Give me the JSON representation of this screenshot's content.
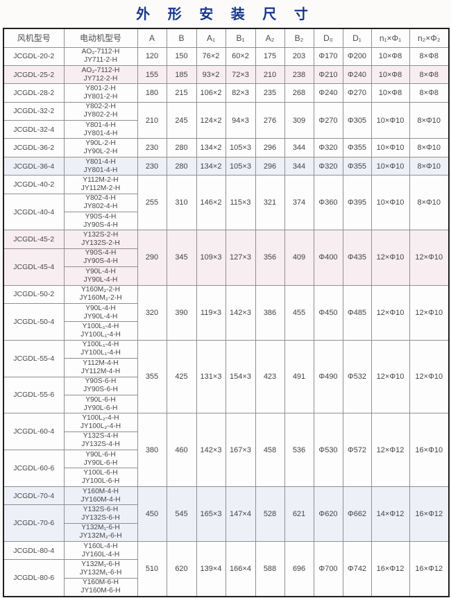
{
  "page": {
    "title": "外 形 安 装 尺 寸",
    "title_color": "#17368c"
  },
  "table": {
    "headers": [
      "风机型号",
      "电动机型号",
      "A",
      "B",
      "A₁",
      "B₁",
      "A₂",
      "B₂",
      "D₀",
      "D₁",
      "n₁×Φ₁",
      "n₂×Φ₂"
    ],
    "groups": [
      {
        "tint": "white",
        "fans": [
          {
            "model": "JCGDL-20-2",
            "motors": [
              [
                "AO₂-7112-H",
                "JY711-2-H"
              ]
            ]
          }
        ],
        "dims": [
          "120",
          "150",
          "76×2",
          "60×2",
          "175",
          "203",
          "Φ170",
          "Φ200",
          "10×Φ8",
          "8×Φ8"
        ]
      },
      {
        "tint": "pink",
        "fans": [
          {
            "model": "JCGDL-25-2",
            "motors": [
              [
                "AO₂-7112-H",
                "JY712-2-H"
              ]
            ]
          }
        ],
        "dims": [
          "155",
          "185",
          "93×2",
          "72×3",
          "210",
          "238",
          "Φ210",
          "Φ240",
          "10×Φ8",
          "8×Φ8"
        ]
      },
      {
        "tint": "white",
        "fans": [
          {
            "model": "JCGDL-28-2",
            "motors": [
              [
                "Y801-2-H",
                "JY801-2-H"
              ]
            ]
          }
        ],
        "dims": [
          "180",
          "215",
          "106×2",
          "82×3",
          "235",
          "268",
          "Φ240",
          "Φ270",
          "10×Φ8",
          "8×Φ8"
        ]
      },
      {
        "tint": "white",
        "fans": [
          {
            "model": "JCGDL-32-2",
            "motors": [
              [
                "Y802-2-H",
                "JY802-2-H"
              ]
            ]
          },
          {
            "model": "JCGDL-32-4",
            "motors": [
              [
                "Y801-4-H",
                "JY801-4-H"
              ]
            ]
          }
        ],
        "dims": [
          "210",
          "245",
          "124×2",
          "94×3",
          "276",
          "309",
          "Φ270",
          "Φ305",
          "10×Φ10",
          "8×Φ10"
        ]
      },
      {
        "tint": "white",
        "fans": [
          {
            "model": "JCGDL-36-2",
            "motors": [
              [
                "Y90L-2-H",
                "JY90L-2-H"
              ]
            ]
          }
        ],
        "dims": [
          "230",
          "280",
          "134×2",
          "105×3",
          "296",
          "344",
          "Φ320",
          "Φ355",
          "10×Φ10",
          "8×Φ10"
        ]
      },
      {
        "tint": "lavender",
        "fans": [
          {
            "model": "JCGDL-36-4",
            "motors": [
              [
                "Y801-4-H",
                "JY801-4-H"
              ]
            ]
          }
        ],
        "dims": [
          "230",
          "280",
          "134×2",
          "105×3",
          "296",
          "344",
          "Φ320",
          "Φ355",
          "10×Φ10",
          "8×Φ10"
        ]
      },
      {
        "tint": "white",
        "fans": [
          {
            "model": "JCGDL-40-2",
            "motors": [
              [
                "Y112M-2-H",
                "JY112M-2-H"
              ]
            ]
          },
          {
            "model": "JCGDL-40-4",
            "motors": [
              [
                "Y802-4-H",
                "JY802-4-H"
              ],
              [
                "Y90S-4-H",
                "JY90S-4-H"
              ]
            ]
          }
        ],
        "dims": [
          "255",
          "310",
          "146×2",
          "115×3",
          "321",
          "374",
          "Φ360",
          "Φ395",
          "10×Φ10",
          "8×Φ10"
        ]
      },
      {
        "tint": "pink",
        "fans": [
          {
            "model": "JCGDL-45-2",
            "motors": [
              [
                "Y132S-2-H",
                "JY132S-2-H"
              ]
            ]
          },
          {
            "model": "JCGDL-45-4",
            "motors": [
              [
                "Y90S-4-H",
                "JY90S-4-H"
              ],
              [
                "Y90L-4-H",
                "JY90L-4-H"
              ]
            ]
          }
        ],
        "dims": [
          "290",
          "345",
          "109×3",
          "127×3",
          "356",
          "409",
          "Φ400",
          "Φ435",
          "12×Φ10",
          "12×Φ10"
        ]
      },
      {
        "tint": "white",
        "fans": [
          {
            "model": "JCGDL-50-2",
            "motors": [
              [
                "Y160M₂-2-H",
                "JY160M₂-2-H"
              ]
            ]
          },
          {
            "model": "JCGDL-50-4",
            "motors": [
              [
                "Y90L-4-H",
                "JY90L-4-H"
              ],
              [
                "Y100L₁-4-H",
                "JY100L₁-4-H"
              ]
            ]
          }
        ],
        "dims": [
          "320",
          "390",
          "119×3",
          "142×3",
          "386",
          "455",
          "Φ450",
          "Φ485",
          "12×Φ10",
          "12×Φ10"
        ]
      },
      {
        "tint": "white",
        "fans": [
          {
            "model": "JCGDL-55-4",
            "motors": [
              [
                "Y100L₁-4-H",
                "JY100L₁-4-H"
              ],
              [
                "Y112M-4-H",
                "JY112M-4-H"
              ]
            ]
          },
          {
            "model": "JCGDL-55-6",
            "motors": [
              [
                "Y90S-6-H",
                "JY90S-6-H"
              ],
              [
                "Y90L-6-H",
                "JY90L-6-H"
              ]
            ]
          }
        ],
        "dims": [
          "355",
          "425",
          "131×3",
          "154×3",
          "423",
          "491",
          "Φ490",
          "Φ532",
          "12×Φ10",
          "12×Φ10"
        ]
      },
      {
        "tint": "white",
        "fans": [
          {
            "model": "JCGDL-60-4",
            "motors": [
              [
                "Y100L₂-4-H",
                "JY100L₂-4-H"
              ],
              [
                "Y132S-4-H",
                "JY132S-4-H"
              ]
            ]
          },
          {
            "model": "JCGDL-60-6",
            "motors": [
              [
                "Y90L-6-H",
                "JY90L-6-H"
              ],
              [
                "Y100L-6-H",
                "JY100L-6-H"
              ]
            ]
          }
        ],
        "dims": [
          "380",
          "460",
          "142×3",
          "167×3",
          "458",
          "536",
          "Φ530",
          "Φ572",
          "12×Φ12",
          "16×Φ10"
        ]
      },
      {
        "tint": "lavender",
        "fans": [
          {
            "model": "JCGDL-70-4",
            "motors": [
              [
                "Y160M-4-H",
                "JY160M-4-H"
              ]
            ]
          },
          {
            "model": "JCGDL-70-6",
            "motors": [
              [
                "Y132S-6-H",
                "JY132S-6-H"
              ],
              [
                "Y132M₁-6-H",
                "JY132M₂-6-H"
              ]
            ]
          }
        ],
        "dims": [
          "450",
          "545",
          "165×3",
          "147×4",
          "528",
          "621",
          "Φ620",
          "Φ662",
          "14×Φ12",
          "16×Φ12"
        ]
      },
      {
        "tint": "white",
        "fans": [
          {
            "model": "JCGDL-80-4",
            "motors": [
              [
                "Y160L-4-H",
                "JY160L-4-H"
              ]
            ]
          },
          {
            "model": "JCGDL-80-6",
            "motors": [
              [
                "Y132M₁-6-H",
                "JY132M₁-6-H"
              ],
              [
                "Y160M-6-H",
                "JY160M-6-H"
              ]
            ]
          }
        ],
        "dims": [
          "510",
          "620",
          "139×4",
          "166×4",
          "588",
          "696",
          "Φ700",
          "Φ742",
          "16×Φ12",
          "16×Φ12"
        ]
      }
    ]
  }
}
